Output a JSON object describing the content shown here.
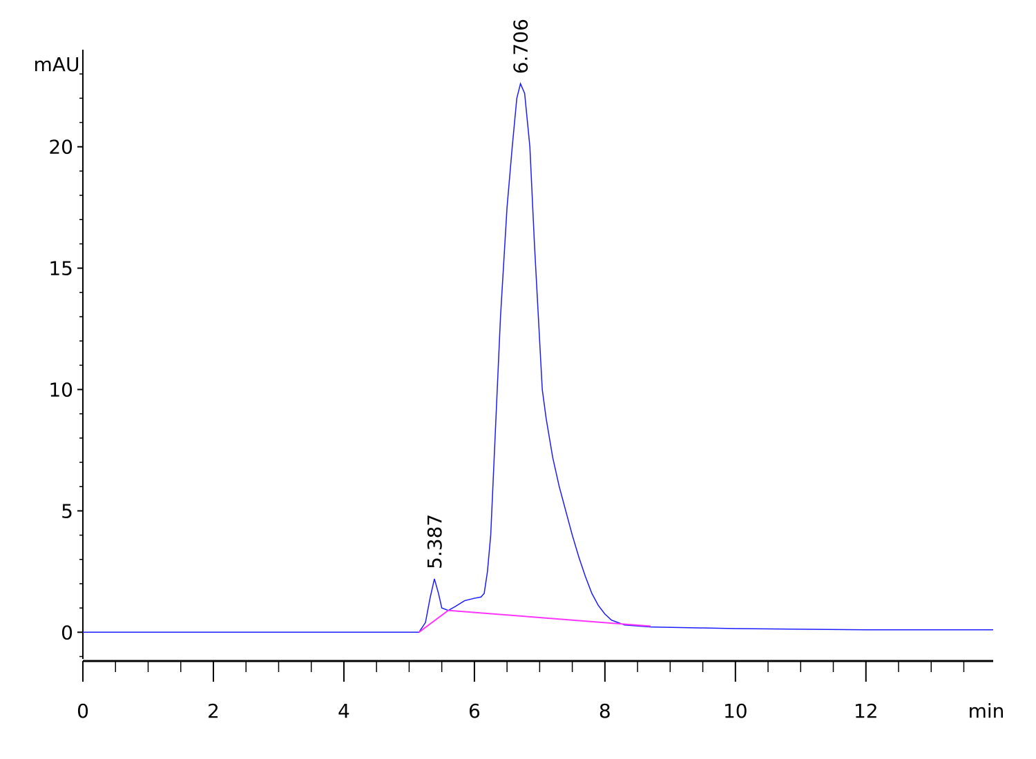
{
  "chart_data": {
    "type": "line",
    "y_label": "mAU",
    "x_label": "min",
    "xlim": [
      0,
      13.95
    ],
    "ylim": [
      -1.1,
      24
    ],
    "xticks": [
      0,
      2,
      4,
      6,
      8,
      10,
      12
    ],
    "yticks": [
      0,
      5,
      10,
      15,
      20
    ],
    "x_minor_ticks": [
      0.5,
      1,
      1.5,
      2.5,
      3,
      3.5,
      4.5,
      5,
      5.5,
      6.5,
      7,
      7.5,
      8.5,
      9,
      9.5,
      10.5,
      11,
      11.5,
      12.5,
      13,
      13.5
    ],
    "y_minor_ticks": [
      -1,
      1,
      2,
      3,
      4,
      6,
      7,
      8,
      9,
      11,
      12,
      13,
      14,
      16,
      17,
      18,
      19,
      21,
      22,
      23
    ],
    "series": [
      {
        "name": "signal",
        "color": "#1a1aff",
        "x": [
          0,
          1.5,
          3,
          4.5,
          5.15,
          5.25,
          5.32,
          5.387,
          5.45,
          5.5,
          5.6,
          5.7,
          5.85,
          6.0,
          6.1,
          6.15,
          6.2,
          6.25,
          6.3,
          6.35,
          6.4,
          6.5,
          6.58,
          6.65,
          6.706,
          6.77,
          6.85,
          6.92,
          7.0,
          7.04,
          7.1,
          7.2,
          7.3,
          7.4,
          7.5,
          7.6,
          7.7,
          7.8,
          7.9,
          8.0,
          8.1,
          8.3,
          8.7,
          10,
          12,
          13.95
        ],
        "values": [
          0,
          0,
          0,
          0,
          0,
          0.4,
          1.4,
          2.2,
          1.6,
          1.0,
          0.9,
          1.05,
          1.3,
          1.4,
          1.45,
          1.6,
          2.5,
          4,
          7,
          10,
          13,
          17.5,
          20,
          22,
          22.6,
          22.2,
          20,
          16,
          12,
          10,
          8.8,
          7.2,
          6,
          5,
          4,
          3.1,
          2.3,
          1.6,
          1.1,
          0.75,
          0.5,
          0.3,
          0.22,
          0.15,
          0.1,
          0.1
        ]
      },
      {
        "name": "baseline",
        "color": "#ff33ff",
        "x": [
          5.15,
          5.6,
          8.7
        ],
        "values": [
          0,
          0.9,
          0.25
        ]
      }
    ],
    "annotations": [
      {
        "label": "5.387",
        "x": 5.387,
        "y": 2.2
      },
      {
        "label": "6.706",
        "x": 6.706,
        "y": 22.6
      }
    ]
  }
}
